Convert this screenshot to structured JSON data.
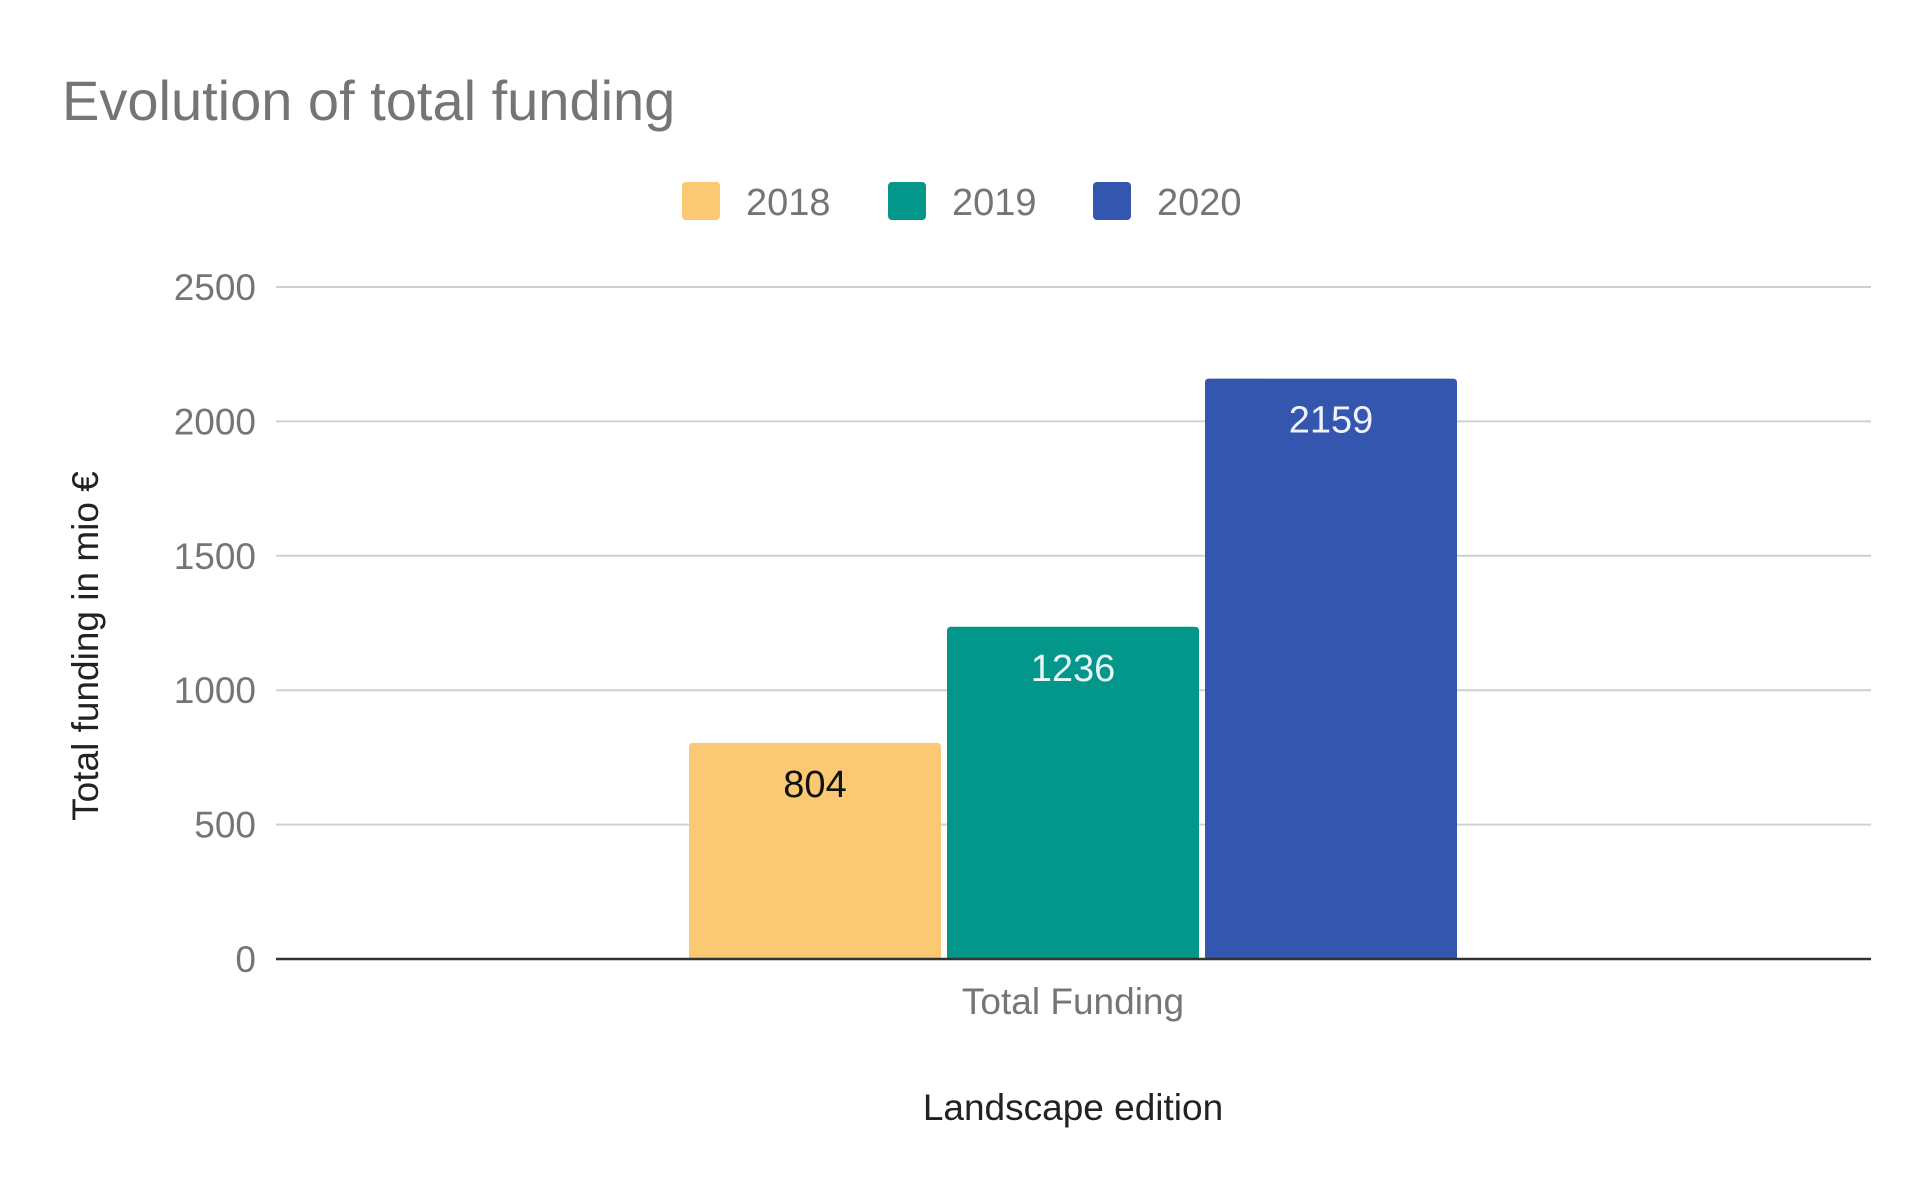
{
  "chart_data": {
    "type": "bar",
    "title": "Evolution of total funding",
    "xlabel": "Landscape edition",
    "ylabel": "Total funding in mio €",
    "categories": [
      "Total Funding"
    ],
    "series": [
      {
        "name": "2018",
        "values": [
          804
        ],
        "color": "#fbc973",
        "label_color": "#111111"
      },
      {
        "name": "2019",
        "values": [
          1236
        ],
        "color": "#03968b",
        "label_color": "#e8f7f5"
      },
      {
        "name": "2020",
        "values": [
          2159
        ],
        "color": "#3456ae",
        "label_color": "#eef2fb"
      }
    ],
    "ylim": [
      0,
      2500
    ],
    "yticks": [
      "0",
      "500",
      "1000",
      "1500",
      "2000",
      "2500"
    ],
    "ytick_values": [
      0,
      500,
      1000,
      1500,
      2000,
      2500
    ],
    "grid": true,
    "legend_position": "top-center",
    "data_labels": true
  }
}
